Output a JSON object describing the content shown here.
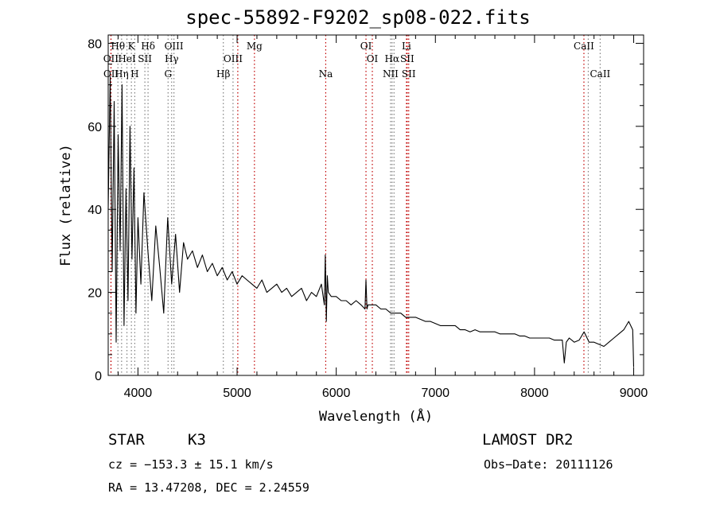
{
  "chart_data": {
    "type": "line",
    "title": "spec-55892-F9202_sp08-022.fits",
    "xlabel": "Wavelength (Å)",
    "ylabel": "Flux (relative)",
    "xlim": [
      3700,
      9100
    ],
    "ylim": [
      0,
      82
    ],
    "x_ticks": [
      4000,
      5000,
      6000,
      7000,
      8000,
      9000
    ],
    "y_ticks": [
      0,
      20,
      40,
      60,
      80
    ],
    "series": [
      {
        "name": "flux",
        "color": "#000000",
        "x": [
          3700,
          3720,
          3740,
          3760,
          3780,
          3800,
          3820,
          3840,
          3860,
          3880,
          3900,
          3920,
          3940,
          3960,
          3980,
          4000,
          4030,
          4060,
          4100,
          4140,
          4180,
          4220,
          4260,
          4300,
          4340,
          4380,
          4420,
          4460,
          4500,
          4550,
          4600,
          4650,
          4700,
          4750,
          4800,
          4850,
          4900,
          4950,
          5000,
          5050,
          5100,
          5150,
          5200,
          5250,
          5300,
          5350,
          5400,
          5450,
          5500,
          5550,
          5600,
          5650,
          5700,
          5750,
          5800,
          5850,
          5880,
          5890,
          5900,
          5910,
          5920,
          5950,
          6000,
          6050,
          6100,
          6150,
          6200,
          6250,
          6290,
          6300,
          6310,
          6320,
          6350,
          6400,
          6450,
          6500,
          6550,
          6600,
          6650,
          6700,
          6750,
          6800,
          6850,
          6900,
          6950,
          7000,
          7050,
          7100,
          7150,
          7200,
          7250,
          7300,
          7350,
          7400,
          7450,
          7500,
          7550,
          7600,
          7650,
          7700,
          7750,
          7800,
          7850,
          7900,
          7950,
          8000,
          8050,
          8100,
          8150,
          8200,
          8250,
          8280,
          8300,
          8320,
          8350,
          8400,
          8450,
          8500,
          8550,
          8600,
          8650,
          8700,
          8750,
          8800,
          8850,
          8900,
          8950,
          8990,
          9000
        ],
        "y": [
          40,
          72,
          25,
          66,
          8,
          58,
          30,
          70,
          12,
          45,
          18,
          60,
          28,
          50,
          15,
          38,
          22,
          44,
          30,
          18,
          36,
          26,
          15,
          38,
          22,
          34,
          20,
          32,
          28,
          30,
          26,
          29,
          25,
          27,
          24,
          26,
          23,
          25,
          22,
          24,
          23,
          22,
          21,
          23,
          20,
          21,
          22,
          20,
          21,
          19,
          20,
          21,
          18,
          20,
          19,
          22,
          17,
          29,
          13,
          24,
          20,
          19,
          19,
          18,
          18,
          17,
          18,
          17,
          16,
          23,
          16,
          17,
          17,
          17,
          16,
          16,
          15,
          15,
          15,
          14,
          14,
          14,
          13.5,
          13,
          13,
          12.5,
          12,
          12,
          12,
          12,
          11,
          11,
          10.5,
          11,
          10.5,
          10.5,
          10.5,
          10.5,
          10,
          10,
          10,
          10,
          9.5,
          9.5,
          9,
          9,
          9,
          9,
          9,
          8.5,
          8.5,
          8.5,
          3,
          8,
          9,
          8,
          8.5,
          10.5,
          8,
          8,
          7.5,
          7,
          8,
          9,
          10,
          11,
          13,
          11,
          2
        ]
      }
    ],
    "lines": [
      {
        "label": "OII",
        "wl": 3727,
        "color": "#c00000",
        "row": 1
      },
      {
        "label": "OII",
        "wl": 3729,
        "color": "#c00000",
        "row": 2
      },
      {
        "label": "Hθ",
        "wl": 3798,
        "color": "#808080",
        "row": 0
      },
      {
        "label": "Hη",
        "wl": 3835,
        "color": "#808080",
        "row": 2
      },
      {
        "label": "HeI",
        "wl": 3889,
        "color": "#808080",
        "row": 1
      },
      {
        "label": "K",
        "wl": 3934,
        "color": "#808080",
        "row": 0
      },
      {
        "label": "H",
        "wl": 3968,
        "color": "#808080",
        "row": 2
      },
      {
        "label": "SII",
        "wl": 4070,
        "color": "#808080",
        "row": 1
      },
      {
        "label": "Hδ",
        "wl": 4102,
        "color": "#808080",
        "row": 0
      },
      {
        "label": "G",
        "wl": 4304,
        "color": "#808080",
        "row": 2
      },
      {
        "label": "Hγ",
        "wl": 4340,
        "color": "#808080",
        "row": 1
      },
      {
        "label": "OIII",
        "wl": 4363,
        "color": "#808080",
        "row": 0
      },
      {
        "label": "Hβ",
        "wl": 4861,
        "color": "#808080",
        "row": 2
      },
      {
        "label": "OIII",
        "wl": 4959,
        "color": "#808080",
        "row": 1
      },
      {
        "label": "OIII",
        "wl": 5007,
        "color": "#c00000",
        "row": -1
      },
      {
        "label": "Mg",
        "wl": 5175,
        "color": "#c00000",
        "row": 0
      },
      {
        "label": "Na",
        "wl": 5894,
        "color": "#c00000",
        "row": 2
      },
      {
        "label": "OI",
        "wl": 6300,
        "color": "#c00000",
        "row": 0
      },
      {
        "label": "OI",
        "wl": 6364,
        "color": "#c00000",
        "row": 1
      },
      {
        "label": "NII",
        "wl": 6548,
        "color": "#808080",
        "row": 2
      },
      {
        "label": "Hα",
        "wl": 6563,
        "color": "#808080",
        "row": 1
      },
      {
        "label": "NII",
        "wl": 6583,
        "color": "#808080",
        "row": -1
      },
      {
        "label": "Li",
        "wl": 6708,
        "color": "#c00000",
        "row": 0
      },
      {
        "label": "SII",
        "wl": 6716,
        "color": "#c00000",
        "row": 1
      },
      {
        "label": "SII",
        "wl": 6731,
        "color": "#c00000",
        "row": 2
      },
      {
        "label": "CaII",
        "wl": 8498,
        "color": "#c00000",
        "row": 0
      },
      {
        "label": "CaII",
        "wl": 8542,
        "color": "#808080",
        "row": -1
      },
      {
        "label": "CaII",
        "wl": 8662,
        "color": "#808080",
        "row": 2
      }
    ]
  },
  "info": {
    "class": "STAR",
    "subclass": "K3",
    "survey": "LAMOST DR2",
    "cz": "cz = −153.3 ± 15.1 km/s",
    "obs_date": "Obs−Date: 20111126",
    "radec": "RA =  13.47208, DEC =   2.24559"
  }
}
